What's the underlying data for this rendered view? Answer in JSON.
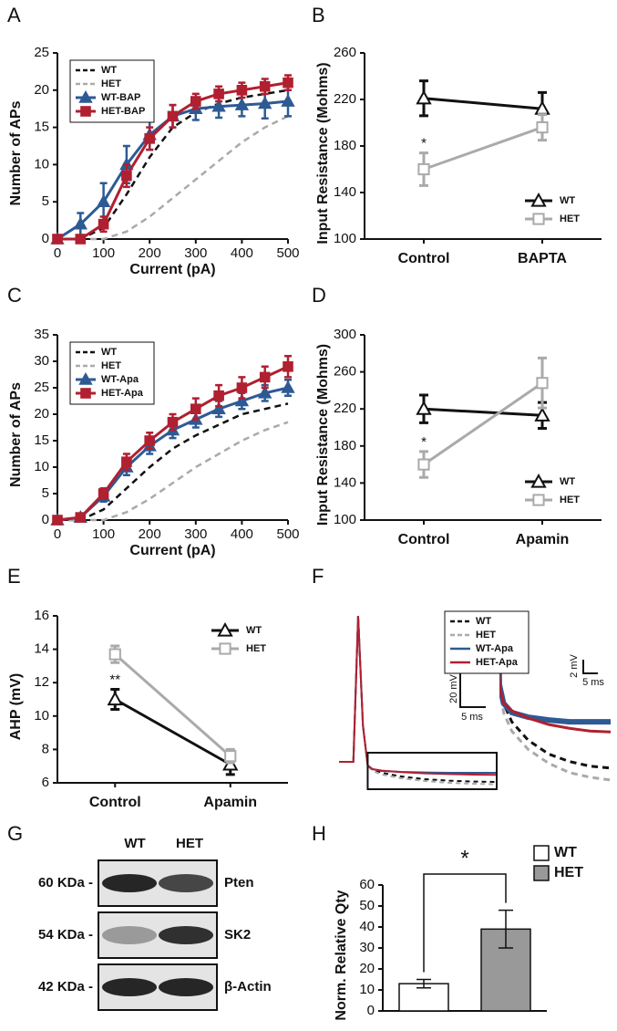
{
  "chart_data": [
    {
      "type": "line",
      "label": "A",
      "xlabel": "Current (pA)",
      "ylabel": "Number of APs",
      "x": [
        0,
        50,
        100,
        150,
        200,
        250,
        300,
        350,
        400,
        450,
        500
      ],
      "xlim": [
        0,
        500
      ],
      "xticks": [
        0,
        100,
        200,
        300,
        400,
        500
      ],
      "ylim": [
        0,
        25
      ],
      "yticks": [
        0,
        5,
        10,
        15,
        20,
        25
      ],
      "legend": "upper left",
      "legend_frame": true,
      "series": [
        {
          "name": "WT",
          "color": "#111111",
          "dash": true,
          "values": [
            0,
            0,
            1.5,
            6,
            11,
            15,
            17,
            18.2,
            19,
            19.5,
            20
          ]
        },
        {
          "name": "HET",
          "color": "#aaaaaa",
          "dash": true,
          "values": [
            0,
            0,
            0,
            1,
            3,
            5.5,
            8,
            10.5,
            13,
            15,
            16.5
          ]
        },
        {
          "name": "WT-BAP",
          "color": "#2e5a94",
          "marker": "triangle",
          "values": [
            0,
            2,
            5,
            10,
            14,
            16.5,
            17.5,
            17.8,
            18,
            18.2,
            18.5
          ],
          "errors": [
            0,
            1.5,
            2.5,
            2.5,
            2,
            1.5,
            1.5,
            1.5,
            1.5,
            2,
            2
          ]
        },
        {
          "name": "HET-BAP",
          "color": "#b02030",
          "marker": "square",
          "values": [
            0,
            0,
            2,
            8.5,
            13.5,
            16.5,
            18.5,
            19.5,
            20,
            20.5,
            21
          ],
          "errors": [
            0,
            0,
            1,
            1.5,
            1.5,
            1.5,
            1,
            1,
            1,
            1,
            1
          ]
        }
      ]
    },
    {
      "type": "category-line",
      "label": "B",
      "ylabel": "Input Resistance (Mohms)",
      "categories": [
        "Control",
        "BAPTA"
      ],
      "ylim": [
        100,
        260
      ],
      "yticks": [
        100,
        140,
        180,
        220,
        260
      ],
      "legend": "lower right",
      "annotation": "*",
      "series": [
        {
          "name": "WT",
          "color": "#111111",
          "marker": "open-triangle",
          "values": [
            221,
            212
          ],
          "errors": [
            15,
            14
          ]
        },
        {
          "name": "HET",
          "color": "#aaaaaa",
          "marker": "open-square",
          "values": [
            160,
            196
          ],
          "errors": [
            14,
            11
          ]
        }
      ]
    },
    {
      "type": "line",
      "label": "C",
      "xlabel": "Current (pA)",
      "ylabel": "Number of APs",
      "x": [
        0,
        50,
        100,
        150,
        200,
        250,
        300,
        350,
        400,
        450,
        500
      ],
      "xlim": [
        0,
        500
      ],
      "xticks": [
        0,
        100,
        200,
        300,
        400,
        500
      ],
      "ylim": [
        0,
        35
      ],
      "yticks": [
        0,
        5,
        10,
        15,
        20,
        25,
        30,
        35
      ],
      "legend": "upper left",
      "legend_frame": true,
      "series": [
        {
          "name": "WT",
          "color": "#111111",
          "dash": true,
          "values": [
            0,
            0,
            2,
            6,
            10,
            13.5,
            16,
            18,
            20,
            21,
            22
          ]
        },
        {
          "name": "HET",
          "color": "#aaaaaa",
          "dash": true,
          "values": [
            0,
            0,
            0,
            1.5,
            4,
            7,
            10,
            12.5,
            15,
            17,
            18.5
          ]
        },
        {
          "name": "WT-Apa",
          "color": "#2e5a94",
          "marker": "triangle",
          "values": [
            0,
            0.5,
            4.5,
            10,
            14,
            17,
            19,
            21,
            22.5,
            24,
            25
          ],
          "errors": [
            0,
            0.5,
            1,
            1.5,
            1.5,
            1.5,
            1.5,
            1.5,
            1.5,
            1.5,
            1.5
          ]
        },
        {
          "name": "HET-Apa",
          "color": "#b02030",
          "marker": "square",
          "values": [
            0,
            0.5,
            5,
            11,
            15,
            18.5,
            21,
            23.5,
            25,
            27,
            29
          ],
          "errors": [
            0,
            0.5,
            1,
            1.5,
            1.5,
            1.5,
            2,
            2,
            2,
            2,
            2
          ]
        }
      ]
    },
    {
      "type": "category-line",
      "label": "D",
      "ylabel": "Input Resistance (Mohms)",
      "categories": [
        "Control",
        "Apamin"
      ],
      "ylim": [
        100,
        300
      ],
      "yticks": [
        100,
        140,
        180,
        220,
        260,
        300
      ],
      "legend": "lower right",
      "annotation": "*",
      "series": [
        {
          "name": "WT",
          "color": "#111111",
          "marker": "open-triangle",
          "values": [
            220,
            213
          ],
          "errors": [
            15,
            14
          ]
        },
        {
          "name": "HET",
          "color": "#aaaaaa",
          "marker": "open-square",
          "values": [
            160,
            248
          ],
          "errors": [
            14,
            27
          ]
        }
      ]
    },
    {
      "type": "category-line",
      "label": "E",
      "ylabel": "AHP (mV)",
      "categories": [
        "Control",
        "Apamin"
      ],
      "ylim": [
        6,
        16
      ],
      "yticks": [
        6,
        8,
        10,
        12,
        14,
        16
      ],
      "legend": "upper right",
      "annotation": "**",
      "series": [
        {
          "name": "WT",
          "color": "#111111",
          "marker": "open-triangle",
          "values": [
            11.0,
            7.1
          ],
          "errors": [
            0.6,
            0.6
          ]
        },
        {
          "name": "HET",
          "color": "#aaaaaa",
          "marker": "open-square",
          "values": [
            13.7,
            7.6
          ],
          "errors": [
            0.5,
            0.4
          ]
        }
      ]
    },
    {
      "type": "trace",
      "label": "F",
      "x": [
        -3,
        0,
        1,
        2,
        3,
        4,
        6,
        10,
        15,
        20,
        25,
        30
      ],
      "xlim": [
        -3,
        30
      ],
      "ylim": [
        -15,
        85
      ],
      "inset": {
        "xlim": [
          3,
          30
        ],
        "ylim": [
          -13,
          3
        ]
      },
      "scale_labels": [
        "20 mV",
        "5 ms",
        "2 mV",
        "5 ms"
      ],
      "legend": "upper right",
      "legend_frame": true,
      "series": [
        {
          "name": "WT",
          "color": "#111111",
          "dash": true,
          "values": [
            0,
            0,
            80,
            20,
            -2,
            -4,
            -6,
            -8,
            -9.5,
            -10.3,
            -10.8,
            -11
          ]
        },
        {
          "name": "HET",
          "color": "#aaaaaa",
          "dash": true,
          "values": [
            0,
            0,
            80,
            20,
            -2,
            -5,
            -7,
            -9,
            -10.5,
            -11.5,
            -12,
            -12.3
          ]
        },
        {
          "name": "WT-Apa",
          "color": "#2e5a94",
          "values": [
            0,
            0,
            80,
            20,
            -2,
            -4,
            -5,
            -5.5,
            -5.8,
            -6,
            -6,
            -6
          ]
        },
        {
          "name": "HET-Apa",
          "color": "#b02030",
          "values": [
            0,
            0,
            80,
            20,
            -2,
            -4,
            -4.8,
            -5.6,
            -6.3,
            -6.7,
            -7,
            -7.1
          ]
        }
      ]
    },
    {
      "type": "bar",
      "label": "H",
      "ylabel": "Norm. Relative Qty",
      "categories": [
        "WT",
        "HET"
      ],
      "values": [
        13,
        39
      ],
      "errors": [
        2,
        9
      ],
      "colors": [
        "#ffffff",
        "#999999"
      ],
      "ylim": [
        0,
        60
      ],
      "yticks": [
        0,
        10,
        20,
        30,
        40,
        50,
        60
      ],
      "legend": "upper right",
      "annotation": "*"
    }
  ],
  "blot": {
    "label": "G",
    "lanes": [
      "WT",
      "HET"
    ],
    "rows": [
      {
        "weight": "60 KDa -",
        "protein": "Pten"
      },
      {
        "weight": "54 KDa -",
        "protein": "SK2"
      },
      {
        "weight": "42 KDa -",
        "protein": "β-Actin"
      }
    ]
  }
}
